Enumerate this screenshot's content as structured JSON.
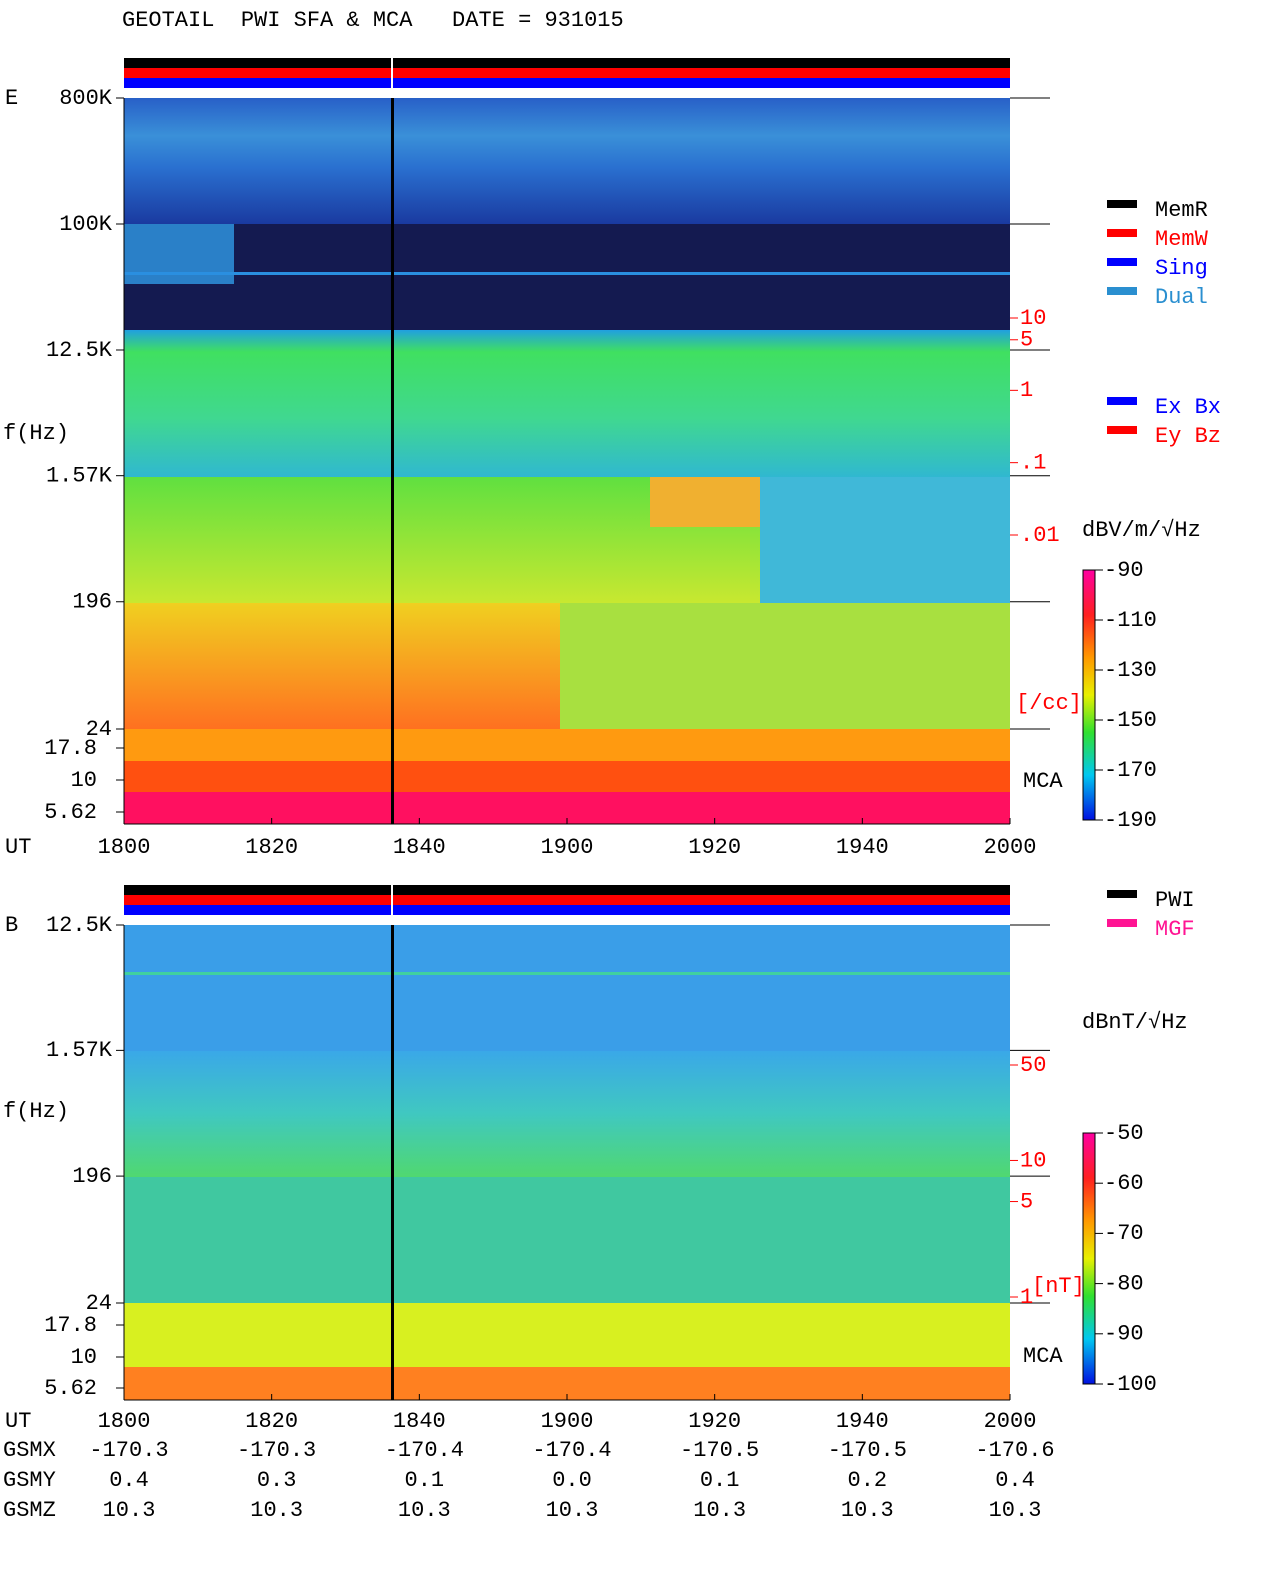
{
  "title": "GEOTAIL  PWI SFA & MCA   DATE = 931015",
  "chart_data": [
    {
      "type": "spectrogram",
      "panel_label": "E",
      "y_label": "f(Hz)",
      "x_label": "UT",
      "yscale": "log",
      "ylim": [
        24,
        800000
      ],
      "yticks": [
        {
          "value": 800000,
          "label": "800K"
        },
        {
          "value": 100000,
          "label": "100K"
        },
        {
          "value": 12500,
          "label": "12.5K"
        },
        {
          "value": 1570,
          "label": "1.57K"
        },
        196,
        24
      ],
      "mca_label": "MCA",
      "mca_ticks": [
        "17.8",
        "10",
        "5.62"
      ],
      "xticks": [
        "1800",
        "1820",
        "1840",
        "1900",
        "1920",
        "1940",
        "2000"
      ],
      "colorbar": {
        "label": "dBV/m/√Hz",
        "lim": [
          -190,
          -90
        ],
        "ticks": [
          -90,
          -110,
          -130,
          -150,
          -170,
          -190
        ]
      },
      "right_scale": {
        "unit": "[/cc]",
        "color": "#ff0000",
        "scale": "log",
        "lim": [
          0.01,
          10
        ],
        "ticks": [
          10,
          5,
          1,
          {
            "value": 0.1,
            "label": ".1"
          },
          {
            "value": 0.01,
            "label": ".01"
          }
        ]
      },
      "legends": [
        [
          {
            "name": "MemR",
            "color": "#000000"
          },
          {
            "name": "MemW",
            "color": "#ff0000"
          },
          {
            "name": "Sing",
            "color": "#0000ff"
          },
          {
            "name": "Dual",
            "color": "#2a8fd0"
          }
        ],
        [
          {
            "name": "Ex Bx",
            "color": "#0000ff"
          },
          {
            "name": "Ey Bz",
            "color": "#ff0000"
          }
        ]
      ]
    },
    {
      "type": "spectrogram",
      "panel_label": "B",
      "y_label": "f(Hz)",
      "x_label": "UT",
      "yscale": "log",
      "ylim": [
        24,
        12500
      ],
      "yticks": [
        {
          "value": 12500,
          "label": "12.5K"
        },
        {
          "value": 1570,
          "label": "1.57K"
        },
        196,
        24
      ],
      "mca_label": "MCA",
      "mca_ticks": [
        "17.8",
        "10",
        "5.62"
      ],
      "xticks": [
        "1800",
        "1820",
        "1840",
        "1900",
        "1920",
        "1940",
        "2000"
      ],
      "colorbar": {
        "label": "dBnT/√Hz",
        "lim": [
          -100,
          -50
        ],
        "ticks": [
          -50,
          -60,
          -70,
          -80,
          -90,
          -100
        ]
      },
      "right_scale": {
        "unit": "[nT]",
        "color": "#ff0000",
        "scale": "log",
        "lim": [
          1,
          50
        ],
        "ticks": [
          50,
          10,
          5,
          1
        ]
      },
      "legends": [
        [
          {
            "name": "PWI",
            "color": "#000000"
          },
          {
            "name": "MGF",
            "color": "#ff1493"
          }
        ]
      ]
    }
  ],
  "orbit": {
    "rows": [
      [
        "GSMX",
        "-170.3",
        "-170.3",
        "-170.4",
        "-170.4",
        "-170.5",
        "-170.5",
        "-170.6"
      ],
      [
        "GSMY",
        "0.4",
        "0.3",
        "0.1",
        "0.0",
        "0.1",
        "0.2",
        "0.4"
      ],
      [
        "GSMZ",
        "10.3",
        "10.3",
        "10.3",
        "10.3",
        "10.3",
        "10.3",
        "10.3"
      ]
    ]
  }
}
